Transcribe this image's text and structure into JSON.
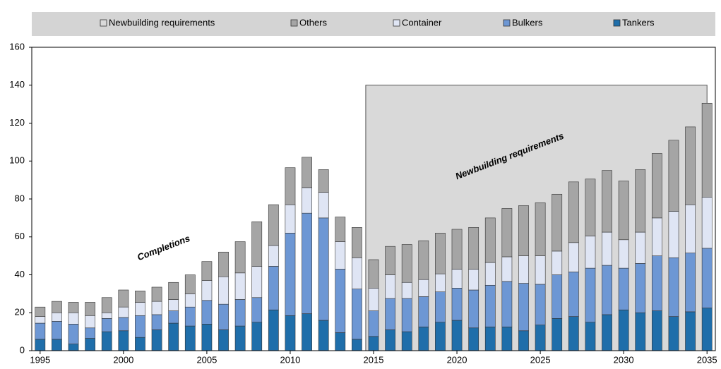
{
  "chart_data": {
    "type": "bar",
    "stacked": true,
    "x": [
      1995,
      1996,
      1997,
      1998,
      1999,
      2000,
      2001,
      2002,
      2003,
      2004,
      2005,
      2006,
      2007,
      2008,
      2009,
      2010,
      2011,
      2012,
      2013,
      2014,
      2015,
      2016,
      2017,
      2018,
      2019,
      2020,
      2021,
      2022,
      2023,
      2024,
      2025,
      2026,
      2027,
      2028,
      2029,
      2030,
      2031,
      2032,
      2033,
      2034,
      2035
    ],
    "series": [
      {
        "name": "Tankers",
        "color": "#1f6eaa",
        "values": [
          6,
          6,
          3.5,
          6.5,
          10,
          10.5,
          7,
          11,
          14.5,
          13,
          14,
          11,
          13,
          15,
          21.5,
          18.5,
          19.5,
          16,
          9.5,
          6,
          7.5,
          11,
          10,
          12.5,
          15,
          16,
          12,
          12.5,
          12.5,
          10.5,
          13.5,
          17,
          18,
          15,
          19,
          21.5,
          20,
          21,
          18,
          20.5,
          22.5
        ]
      },
      {
        "name": "Bulkers",
        "color": "#6d97d4",
        "values": [
          8.5,
          9.5,
          10.5,
          5.5,
          7,
          7,
          11.5,
          8,
          6.5,
          10,
          12.5,
          13.5,
          14,
          13,
          23,
          43.5,
          53,
          54,
          33.5,
          26.5,
          13.5,
          16.5,
          17.5,
          16,
          16,
          17,
          20,
          22,
          24,
          25,
          21.5,
          23,
          23.5,
          28.5,
          26,
          22,
          26,
          29,
          31,
          31,
          31.5
        ]
      },
      {
        "name": "Container",
        "color": "#dfe5f4",
        "values": [
          3.5,
          4.5,
          6,
          6.5,
          3,
          5.5,
          7,
          7,
          6,
          7,
          10.5,
          14.5,
          14,
          16.5,
          11,
          15,
          13.5,
          13.5,
          14.5,
          16.5,
          12,
          12.5,
          8.5,
          9,
          9.5,
          10,
          11,
          12,
          13,
          14.5,
          15,
          12.5,
          15.5,
          17,
          17.5,
          15,
          16.5,
          20,
          24.5,
          25.5,
          27
        ]
      },
      {
        "name": "Others",
        "color": "#a5a5a5",
        "values": [
          5,
          6,
          5.5,
          7,
          8,
          9,
          6,
          7.5,
          9,
          10,
          10,
          13,
          16.5,
          23.5,
          21.5,
          19.5,
          16,
          12,
          13,
          16,
          15,
          15,
          20,
          20.5,
          21.5,
          21,
          22,
          23.5,
          25.5,
          26.5,
          28,
          30,
          32,
          30,
          32.5,
          31,
          33,
          34,
          37.5,
          41,
          49.5
        ]
      }
    ],
    "shaded_region": {
      "name": "Newbuilding requirements",
      "color": "#d9d9d9",
      "x": [
        2015,
        2035
      ],
      "top": 140
    },
    "annotations": [
      "Completions",
      "Newbuilding requirements"
    ],
    "xlim": [
      1994.5,
      2035.5
    ],
    "xticks": [
      1995,
      2000,
      2005,
      2010,
      2015,
      2020,
      2025,
      2030,
      2035
    ],
    "ylim": [
      0,
      160
    ],
    "yticks": [
      0,
      20,
      40,
      60,
      80,
      100,
      120,
      140,
      160
    ],
    "grid": false,
    "legend": "top"
  }
}
